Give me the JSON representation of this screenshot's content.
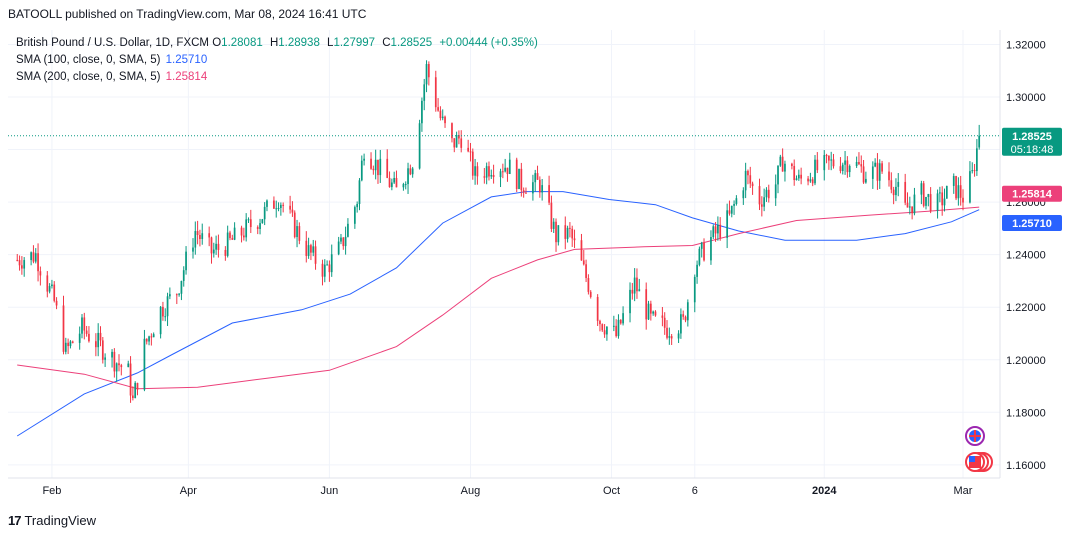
{
  "header": {
    "published_text": "BATOOLL published on TradingView.com, Mar 08, 2024 16:41 UTC"
  },
  "legend": {
    "symbol": "British Pound / U.S. Dollar, 1D, FXCM",
    "open_label": "O",
    "open": "1.28081",
    "high_label": "H",
    "high": "1.28938",
    "low_label": "L",
    "low": "1.27997",
    "close_label": "C",
    "close": "1.28525",
    "change": "+0.00444 (+0.35%)",
    "sma100_label": "SMA (100, close, 0, SMA, 5)",
    "sma100_value": "1.25710",
    "sma200_label": "SMA (200, close, 0, SMA, 5)",
    "sma200_value": "1.25814"
  },
  "price_badge": {
    "price": "1.28525",
    "countdown": "05:18:48"
  },
  "sma200_badge": "1.25814",
  "sma100_badge": "1.25710",
  "brand": {
    "logo": "17",
    "name": "TradingView"
  },
  "colors": {
    "up": "#089981",
    "down": "#f23645",
    "sma100": "#2962ff",
    "sma200": "#ec407a",
    "grid": "#f0f3fa"
  },
  "icons": [
    "gb-flag-icon",
    "us-flag-icon"
  ],
  "chart_data": {
    "type": "candlestick",
    "title": "British Pound / U.S. Dollar, 1D, FXCM",
    "ylim": [
      1.155,
      1.3255
    ],
    "y_ticks": [
      "1.32000",
      "1.30000",
      "1.28000",
      "1.26000",
      "1.24000",
      "1.22000",
      "1.20000",
      "1.18000",
      "1.16000"
    ],
    "x_ticks": [
      "Feb",
      "Apr",
      "Jun",
      "Aug",
      "Oct",
      "6",
      "2024",
      "Mar"
    ],
    "x_tick_dates": [
      "2023-02-01",
      "2023-04-01",
      "2023-06-01",
      "2023-08-01",
      "2023-10-01",
      "2023-11-06",
      "2024-01-01",
      "2024-03-01"
    ],
    "close_path": [
      [
        "2023-01-17",
        1.238
      ],
      [
        "2023-01-25",
        1.24
      ],
      [
        "2023-02-02",
        1.222
      ],
      [
        "2023-02-07",
        1.203
      ],
      [
        "2023-02-14",
        1.212
      ],
      [
        "2023-02-21",
        1.206
      ],
      [
        "2023-02-28",
        1.2
      ],
      [
        "2023-03-06",
        1.195
      ],
      [
        "2023-03-08",
        1.184
      ],
      [
        "2023-03-13",
        1.205
      ],
      [
        "2023-03-20",
        1.219
      ],
      [
        "2023-03-27",
        1.226
      ],
      [
        "2023-04-04",
        1.249
      ],
      [
        "2023-04-11",
        1.241
      ],
      [
        "2023-04-18",
        1.244
      ],
      [
        "2023-04-25",
        1.249
      ],
      [
        "2023-05-03",
        1.255
      ],
      [
        "2023-05-10",
        1.262
      ],
      [
        "2023-05-16",
        1.252
      ],
      [
        "2023-05-23",
        1.241
      ],
      [
        "2023-05-30",
        1.234
      ],
      [
        "2023-06-06",
        1.243
      ],
      [
        "2023-06-13",
        1.261
      ],
      [
        "2023-06-16",
        1.281
      ],
      [
        "2023-06-23",
        1.272
      ],
      [
        "2023-06-30",
        1.264
      ],
      [
        "2023-07-07",
        1.276
      ],
      [
        "2023-07-13",
        1.311
      ],
      [
        "2023-07-19",
        1.292
      ],
      [
        "2023-07-24",
        1.282
      ],
      [
        "2023-07-28",
        1.285
      ],
      [
        "2023-08-03",
        1.27
      ],
      [
        "2023-08-10",
        1.274
      ],
      [
        "2023-08-17",
        1.274
      ],
      [
        "2023-08-23",
        1.267
      ],
      [
        "2023-08-31",
        1.267
      ],
      [
        "2023-09-07",
        1.247
      ],
      [
        "2023-09-13",
        1.248
      ],
      [
        "2023-09-21",
        1.229
      ],
      [
        "2023-09-26",
        1.215
      ],
      [
        "2023-10-03",
        1.209
      ],
      [
        "2023-10-11",
        1.229
      ],
      [
        "2023-10-18",
        1.215
      ],
      [
        "2023-10-25",
        1.212
      ],
      [
        "2023-11-01",
        1.214
      ],
      [
        "2023-11-06",
        1.236
      ],
      [
        "2023-11-13",
        1.246
      ],
      [
        "2023-11-21",
        1.254
      ],
      [
        "2023-11-28",
        1.27
      ],
      [
        "2023-12-04",
        1.261
      ],
      [
        "2023-12-11",
        1.267
      ],
      [
        "2023-12-14",
        1.276
      ],
      [
        "2023-12-21",
        1.268
      ],
      [
        "2023-12-28",
        1.272
      ],
      [
        "2024-01-05",
        1.275
      ],
      [
        "2024-01-12",
        1.276
      ],
      [
        "2024-01-19",
        1.271
      ],
      [
        "2024-01-26",
        1.272
      ],
      [
        "2024-02-01",
        1.266
      ],
      [
        "2024-02-05",
        1.257
      ],
      [
        "2024-02-12",
        1.263
      ],
      [
        "2024-02-19",
        1.259
      ],
      [
        "2024-02-26",
        1.266
      ],
      [
        "2024-03-01",
        1.262
      ],
      [
        "2024-03-05",
        1.27
      ],
      [
        "2024-03-08",
        1.285
      ]
    ],
    "last_candle": {
      "date": "2024-03-08",
      "open": 1.28081,
      "high": 1.28938,
      "low": 1.27997,
      "close": 1.28525
    },
    "series": [
      {
        "name": "SMA (100, close, 0, SMA, 5)",
        "color": "#2962ff",
        "last": 1.2571,
        "points": [
          [
            "2023-01-17",
            1.171
          ],
          [
            "2023-02-15",
            1.187
          ],
          [
            "2023-03-10",
            1.195
          ],
          [
            "2023-03-25",
            1.202
          ],
          [
            "2023-04-20",
            1.214
          ],
          [
            "2023-05-20",
            1.219
          ],
          [
            "2023-06-10",
            1.225
          ],
          [
            "2023-06-30",
            1.235
          ],
          [
            "2023-07-20",
            1.252
          ],
          [
            "2023-08-10",
            1.262
          ],
          [
            "2023-08-25",
            1.264
          ],
          [
            "2023-09-10",
            1.264
          ],
          [
            "2023-09-30",
            1.261
          ],
          [
            "2023-10-20",
            1.259
          ],
          [
            "2023-11-05",
            1.254
          ],
          [
            "2023-11-25",
            1.249
          ],
          [
            "2023-12-15",
            1.2455
          ],
          [
            "2024-01-15",
            1.2455
          ],
          [
            "2024-02-05",
            1.248
          ],
          [
            "2024-02-25",
            1.2525
          ],
          [
            "2024-03-08",
            1.2571
          ]
        ]
      },
      {
        "name": "SMA (200, close, 0, SMA, 5)",
        "color": "#ec407a",
        "last": 1.25814,
        "points": [
          [
            "2023-01-17",
            1.198
          ],
          [
            "2023-02-15",
            1.1945
          ],
          [
            "2023-03-10",
            1.189
          ],
          [
            "2023-04-05",
            1.1895
          ],
          [
            "2023-05-05",
            1.193
          ],
          [
            "2023-06-01",
            1.196
          ],
          [
            "2023-06-30",
            1.205
          ],
          [
            "2023-07-20",
            1.217
          ],
          [
            "2023-08-10",
            1.231
          ],
          [
            "2023-08-30",
            1.238
          ],
          [
            "2023-09-15",
            1.242
          ],
          [
            "2023-10-15",
            1.243
          ],
          [
            "2023-11-05",
            1.2435
          ],
          [
            "2023-11-25",
            1.248
          ],
          [
            "2023-12-20",
            1.253
          ],
          [
            "2024-01-20",
            1.255
          ],
          [
            "2024-02-15",
            1.2565
          ],
          [
            "2024-03-08",
            1.2581
          ]
        ]
      }
    ],
    "grid": true,
    "legend_position": "top-left"
  }
}
